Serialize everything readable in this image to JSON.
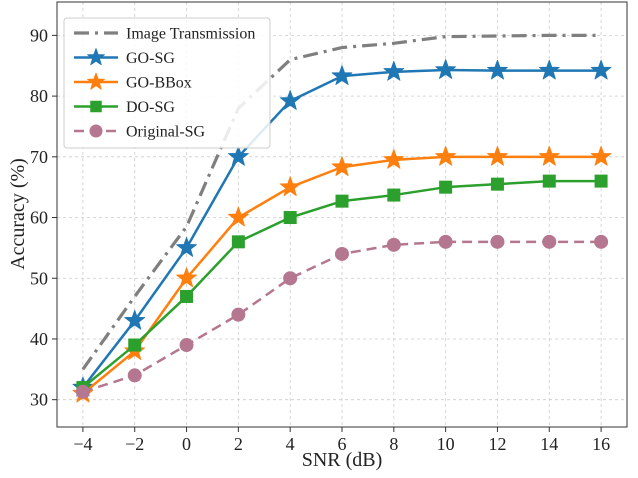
{
  "chart_data": {
    "type": "line",
    "xlabel": "SNR (dB)",
    "ylabel": "Accuracy (%)",
    "xlim": [
      -5,
      17
    ],
    "ylim": [
      25.5,
      95.5
    ],
    "xticks": [
      -4,
      -2,
      0,
      2,
      4,
      6,
      8,
      10,
      12,
      14,
      16
    ],
    "xtick_labels": [
      "−4",
      "−2",
      "0",
      "2",
      "4",
      "6",
      "8",
      "10",
      "12",
      "14",
      "16"
    ],
    "yticks": [
      30,
      40,
      50,
      60,
      70,
      80,
      90
    ],
    "ytick_labels": [
      "30",
      "40",
      "50",
      "60",
      "70",
      "80",
      "90"
    ],
    "grid": true,
    "legend_position": "top-left",
    "x": [
      -4,
      -2,
      0,
      2,
      4,
      6,
      8,
      10,
      12,
      14,
      16
    ],
    "series": [
      {
        "name": "Image Transmission",
        "color": "#7f7f7f",
        "line": "dashdot",
        "marker": "none",
        "values": [
          35,
          47,
          58.5,
          78,
          86,
          88,
          88.7,
          89.8,
          89.9,
          90,
          90
        ]
      },
      {
        "name": "GO-SG",
        "color": "#1f77b4",
        "line": "solid",
        "marker": "star",
        "values": [
          32,
          43,
          55,
          70,
          79.2,
          83.3,
          84,
          84.3,
          84.2,
          84.2,
          84.2
        ]
      },
      {
        "name": "GO-BBox",
        "color": "#ff7f0e",
        "line": "solid",
        "marker": "star",
        "values": [
          31,
          38,
          50,
          60,
          65,
          68.3,
          69.5,
          70,
          70,
          70,
          70
        ]
      },
      {
        "name": "DO-SG",
        "color": "#2ca02c",
        "line": "solid",
        "marker": "square",
        "values": [
          32,
          39,
          47,
          56,
          60,
          62.7,
          63.7,
          65,
          65.5,
          66,
          66
        ]
      },
      {
        "name": "Original-SG",
        "color": "#b5768f",
        "line": "dashed",
        "marker": "circle",
        "values": [
          31.3,
          34,
          39,
          44,
          50,
          54,
          55.5,
          56,
          56,
          56,
          56
        ]
      }
    ]
  }
}
